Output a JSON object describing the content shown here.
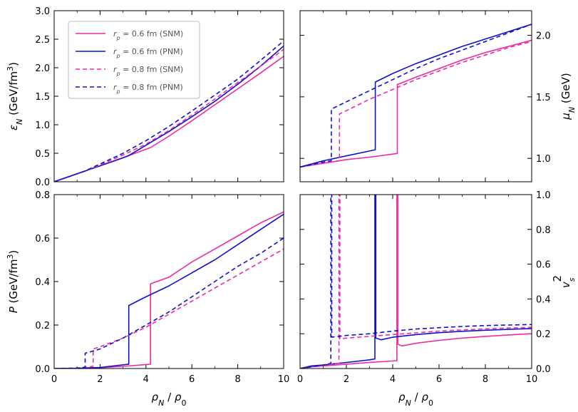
{
  "chart_data": [
    {
      "type": "line",
      "panel": "top-left",
      "ylabel": "ε_N (GeV/fm³)",
      "ylabel_parts": [
        "ε",
        "N",
        " (GeV/fm",
        "3",
        ")"
      ],
      "xlim": [
        0,
        10
      ],
      "ylim": [
        0,
        3.0
      ],
      "xticks": [
        0,
        2,
        4,
        6,
        8,
        10
      ],
      "xtick_labels_shown": false,
      "yticks": [
        "0.0",
        "0.5",
        "1.0",
        "1.5",
        "2.0",
        "2.5",
        "3.0"
      ],
      "legend": {
        "placement": "top-left",
        "entries": [
          {
            "sym": "r",
            "sub": "p",
            "text": " = 0.6 fm (SNM)",
            "color": "#ee2aa3",
            "dash": "solid"
          },
          {
            "sym": "r",
            "sub": "p",
            "text": " = 0.6 fm (PNM)",
            "color": "#1010cc",
            "dash": "solid"
          },
          {
            "sym": "r",
            "sub": "p",
            "text": " = 0.8 fm (SNM)",
            "color": "#ee2aa3",
            "dash": "dashed"
          },
          {
            "sym": "r",
            "sub": "p",
            "text": " = 0.8 fm (PNM)",
            "color": "#1010cc",
            "dash": "dashed"
          }
        ]
      },
      "series": [
        {
          "color": "#ee2aa3",
          "dash": "solid",
          "x": [
            0,
            1,
            2,
            3,
            4.2,
            5,
            6,
            7,
            8,
            9,
            10
          ],
          "y": [
            0,
            0.14,
            0.28,
            0.42,
            0.6,
            0.8,
            1.07,
            1.35,
            1.63,
            1.91,
            2.2
          ]
        },
        {
          "color": "#1010cc",
          "dash": "solid",
          "x": [
            0,
            1,
            2,
            3,
            3.25,
            4,
            5,
            6,
            7,
            8,
            9,
            10
          ],
          "y": [
            0,
            0.14,
            0.28,
            0.42,
            0.46,
            0.64,
            0.88,
            1.14,
            1.41,
            1.71,
            2.03,
            2.38
          ]
        },
        {
          "color": "#ee2aa3",
          "dash": "dashed",
          "x": [
            0,
            1,
            1.7,
            3,
            4,
            5,
            6,
            7,
            8,
            9,
            10
          ],
          "y": [
            0,
            0.14,
            0.24,
            0.47,
            0.66,
            0.9,
            1.17,
            1.45,
            1.74,
            2.03,
            2.32
          ]
        },
        {
          "color": "#1010cc",
          "dash": "dashed",
          "x": [
            0,
            1,
            1.35,
            3,
            4,
            5,
            6,
            7,
            8,
            9,
            10
          ],
          "y": [
            0,
            0.14,
            0.19,
            0.5,
            0.72,
            0.97,
            1.24,
            1.52,
            1.8,
            2.13,
            2.47
          ]
        }
      ]
    },
    {
      "type": "line",
      "panel": "top-right",
      "ylabel": "μ_N (GeV)",
      "ylabel_parts": [
        "μ",
        "N",
        " (GeV)"
      ],
      "xlim": [
        0,
        10
      ],
      "ylim": [
        0.81,
        2.2
      ],
      "xticks": [
        0,
        2,
        4,
        6,
        8,
        10
      ],
      "xtick_labels_shown": false,
      "yticks": [
        "1.0",
        "1.5",
        "2.0"
      ],
      "ytick_values": [
        1.0,
        1.5,
        2.0
      ],
      "ytick_side": "right",
      "series": [
        {
          "color": "#ee2aa3",
          "dash": "solid",
          "x": [
            0,
            1,
            2,
            3,
            4.2,
            4.2,
            5,
            6,
            7,
            8,
            9,
            10
          ],
          "y": [
            0.93,
            0.96,
            0.99,
            1.01,
            1.04,
            1.6,
            1.66,
            1.73,
            1.8,
            1.86,
            1.91,
            1.96
          ]
        },
        {
          "color": "#1010cc",
          "dash": "solid",
          "x": [
            0,
            1,
            2,
            3.25,
            3.25,
            4,
            5,
            6,
            7,
            8,
            9,
            10
          ],
          "y": [
            0.93,
            0.98,
            1.02,
            1.07,
            1.62,
            1.69,
            1.77,
            1.84,
            1.91,
            1.97,
            2.03,
            2.09
          ]
        },
        {
          "color": "#ee2aa3",
          "dash": "dashed",
          "x": [
            0,
            1,
            1.7,
            1.7,
            3,
            4,
            5,
            6,
            7,
            8,
            9,
            10
          ],
          "y": [
            0.93,
            0.96,
            0.98,
            1.36,
            1.48,
            1.56,
            1.64,
            1.71,
            1.78,
            1.84,
            1.9,
            1.95
          ]
        },
        {
          "color": "#1010cc",
          "dash": "dashed",
          "x": [
            0,
            1,
            1.35,
            1.35,
            2,
            3,
            4,
            5,
            6,
            7,
            8,
            9,
            10
          ],
          "y": [
            0.93,
            0.97,
            0.98,
            1.4,
            1.46,
            1.55,
            1.64,
            1.73,
            1.81,
            1.88,
            1.95,
            2.02,
            2.09
          ]
        }
      ]
    },
    {
      "type": "line",
      "panel": "bottom-left",
      "ylabel": "P (GeV/fm³)",
      "ylabel_parts": [
        "P",
        "",
        " (GeV/fm",
        "3",
        ")"
      ],
      "xlabel": "ρ_N / ρ_0",
      "xlabel_parts": [
        "ρ",
        "N",
        " / ",
        "ρ",
        "0"
      ],
      "xlim": [
        0,
        10
      ],
      "ylim": [
        0,
        0.8
      ],
      "xticks": [
        0,
        2,
        4,
        6,
        8,
        10
      ],
      "xtick_labels": [
        "0",
        "2",
        "4",
        "6",
        "8",
        "10"
      ],
      "yticks": [
        "0.0",
        "0.2",
        "0.4",
        "0.6",
        "0.8"
      ],
      "series": [
        {
          "color": "#ee2aa3",
          "dash": "solid",
          "x": [
            0,
            1,
            2,
            3,
            4.2,
            4.2,
            5,
            6,
            7,
            8,
            9,
            10
          ],
          "y": [
            0,
            0.001,
            0.004,
            0.01,
            0.02,
            0.39,
            0.42,
            0.49,
            0.55,
            0.61,
            0.67,
            0.72
          ]
        },
        {
          "color": "#1010cc",
          "dash": "solid",
          "x": [
            0,
            1,
            2,
            3.25,
            3.25,
            4,
            5,
            6,
            7,
            8,
            9,
            10
          ],
          "y": [
            0,
            0.001,
            0.005,
            0.02,
            0.29,
            0.33,
            0.38,
            0.44,
            0.5,
            0.57,
            0.64,
            0.71
          ]
        },
        {
          "color": "#ee2aa3",
          "dash": "dashed",
          "x": [
            0,
            1,
            1.7,
            1.7,
            2,
            3,
            4,
            5,
            6,
            7,
            8,
            9,
            10
          ],
          "y": [
            0,
            0.002,
            0.01,
            0.09,
            0.1,
            0.14,
            0.19,
            0.25,
            0.31,
            0.37,
            0.43,
            0.49,
            0.55
          ]
        },
        {
          "color": "#1010cc",
          "dash": "dashed",
          "x": [
            0,
            1,
            1.35,
            1.35,
            2,
            3,
            4,
            5,
            6,
            7,
            8,
            9,
            10
          ],
          "y": [
            0,
            0.002,
            0.006,
            0.07,
            0.09,
            0.14,
            0.2,
            0.26,
            0.33,
            0.4,
            0.47,
            0.53,
            0.6
          ]
        }
      ]
    },
    {
      "type": "line",
      "panel": "bottom-right",
      "ylabel": "v_s²",
      "ylabel_parts": [
        "v",
        "s",
        "2"
      ],
      "xlabel": "ρ_N / ρ_0",
      "xlabel_parts": [
        "ρ",
        "N",
        " / ",
        "ρ",
        "0"
      ],
      "xlim": [
        0,
        10
      ],
      "ylim": [
        0,
        1.0
      ],
      "xticks": [
        0,
        2,
        4,
        6,
        8,
        10
      ],
      "xtick_labels": [
        "0",
        "2",
        "4",
        "6",
        "8",
        "10"
      ],
      "yticks": [
        "0.0",
        "0.2",
        "0.4",
        "0.6",
        "0.8",
        "1.0"
      ],
      "ytick_values": [
        0,
        0.2,
        0.4,
        0.6,
        0.8,
        1.0
      ],
      "ytick_side": "right",
      "series": [
        {
          "color": "#ee2aa3",
          "dash": "solid",
          "x": [
            0,
            0.5,
            1,
            2,
            3,
            4.18,
            4.18,
            4.22,
            4.22,
            4.4,
            5,
            6,
            7,
            8,
            9,
            10
          ],
          "y": [
            0,
            0.01,
            0.015,
            0.025,
            0.035,
            0.045,
            1.0,
            1.0,
            0.14,
            0.13,
            0.145,
            0.162,
            0.175,
            0.185,
            0.193,
            0.2
          ]
        },
        {
          "color": "#1010cc",
          "dash": "solid",
          "x": [
            0,
            0.5,
            1,
            2,
            3,
            3.23,
            3.23,
            3.27,
            3.27,
            3.5,
            4,
            5,
            6,
            7,
            8,
            9,
            10
          ],
          "y": [
            0,
            0.015,
            0.02,
            0.035,
            0.05,
            0.055,
            1.0,
            1.0,
            0.175,
            0.165,
            0.18,
            0.195,
            0.206,
            0.214,
            0.22,
            0.225,
            0.23
          ]
        },
        {
          "color": "#ee2aa3",
          "dash": "dashed",
          "x": [
            0,
            1,
            1.68,
            1.68,
            1.72,
            1.72,
            2,
            3,
            4,
            5,
            6,
            7,
            8,
            9,
            10
          ],
          "y": [
            0,
            0.02,
            0.03,
            1.0,
            1.0,
            0.17,
            0.175,
            0.185,
            0.195,
            0.205,
            0.215,
            0.222,
            0.228,
            0.233,
            0.237
          ]
        },
        {
          "color": "#1010cc",
          "dash": "dashed",
          "x": [
            0,
            1,
            1.33,
            1.33,
            1.37,
            1.37,
            2,
            3,
            4,
            5,
            6,
            7,
            8,
            9,
            10
          ],
          "y": [
            0,
            0.02,
            0.03,
            1.0,
            1.0,
            0.18,
            0.19,
            0.2,
            0.215,
            0.227,
            0.235,
            0.242,
            0.247,
            0.25,
            0.253
          ]
        }
      ]
    }
  ]
}
